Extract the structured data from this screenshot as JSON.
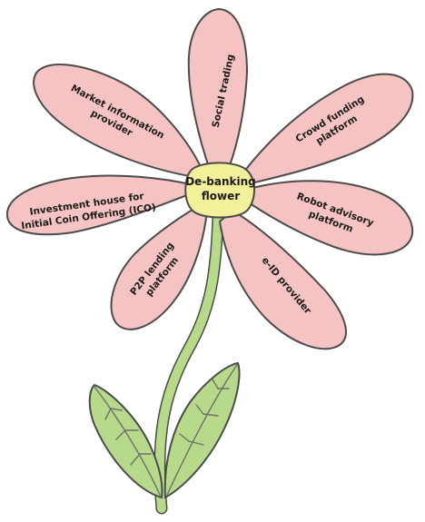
{
  "center": {
    "label_line1": "De-banking",
    "label_line2": "flower"
  },
  "petals": {
    "social_trading": {
      "line1": "Social trading"
    },
    "crowd_funding": {
      "line1": "Crowd funding",
      "line2": "platform"
    },
    "robot_advisory": {
      "line1": "Robot advisory",
      "line2": "platform"
    },
    "eid": {
      "line1": "e-ID provider"
    },
    "p2p": {
      "line1": "P2P lending",
      "line2": "platform"
    },
    "ico": {
      "line1": "Investment house for",
      "line2": "Initial Coin Offering (ICO)"
    },
    "market_info": {
      "line1": "Market information",
      "line2": "provider"
    }
  },
  "colors": {
    "petal": "#f5c3c2",
    "center": "#f3f09a",
    "stem_leaf": "#b6d98a",
    "outline": "#4b4b4b"
  }
}
